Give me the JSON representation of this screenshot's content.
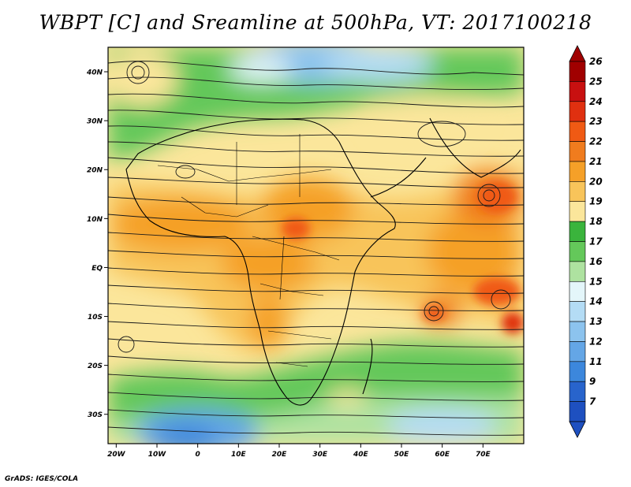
{
  "title": "WBPT [C] and Sreamline at 500hPa, VT: 2017100218",
  "footer": "GrADS: IGES/COLA",
  "map": {
    "variable": "WBPT [C]",
    "overlay": "Streamline",
    "level": "500hPa",
    "valid_time": "2017100218",
    "lat_ticks": [
      {
        "lat": 40,
        "label": "40N"
      },
      {
        "lat": 30,
        "label": "30N"
      },
      {
        "lat": 20,
        "label": "20N"
      },
      {
        "lat": 10,
        "label": "10N"
      },
      {
        "lat": 0,
        "label": "EQ"
      },
      {
        "lat": -10,
        "label": "10S"
      },
      {
        "lat": -20,
        "label": "20S"
      },
      {
        "lat": -30,
        "label": "30S"
      }
    ],
    "lon_ticks": [
      {
        "lon": -20,
        "label": "20W"
      },
      {
        "lon": -10,
        "label": "10W"
      },
      {
        "lon": 0,
        "label": "0"
      },
      {
        "lon": 10,
        "label": "10E"
      },
      {
        "lon": 20,
        "label": "20E"
      },
      {
        "lon": 30,
        "label": "30E"
      },
      {
        "lon": 40,
        "label": "40E"
      },
      {
        "lon": 50,
        "label": "50E"
      },
      {
        "lon": 60,
        "label": "60E"
      },
      {
        "lon": 70,
        "label": "70E"
      }
    ]
  },
  "colorbar": {
    "levels": [
      {
        "label": "26",
        "color": "#a00000"
      },
      {
        "label": "25",
        "color": "#c81010"
      },
      {
        "label": "24",
        "color": "#e03010"
      },
      {
        "label": "23",
        "color": "#f05a14"
      },
      {
        "label": "22",
        "color": "#f07c1e"
      },
      {
        "label": "21",
        "color": "#f5a028"
      },
      {
        "label": "20",
        "color": "#f8c45a"
      },
      {
        "label": "19",
        "color": "#fbe69b"
      },
      {
        "label": "18",
        "color": "#3ab43c"
      },
      {
        "label": "17",
        "color": "#64c85a"
      },
      {
        "label": "16",
        "color": "#aee2a0"
      },
      {
        "label": "15",
        "color": "#e4f6fa"
      },
      {
        "label": "14",
        "color": "#b4dcf5"
      },
      {
        "label": "13",
        "color": "#8cc3ee"
      },
      {
        "label": "12",
        "color": "#64a6e6"
      },
      {
        "label": "11",
        "color": "#3c87dc"
      },
      {
        "label": "9",
        "color": "#2864cc"
      },
      {
        "label": "7",
        "color": "#1e50c0"
      }
    ]
  }
}
